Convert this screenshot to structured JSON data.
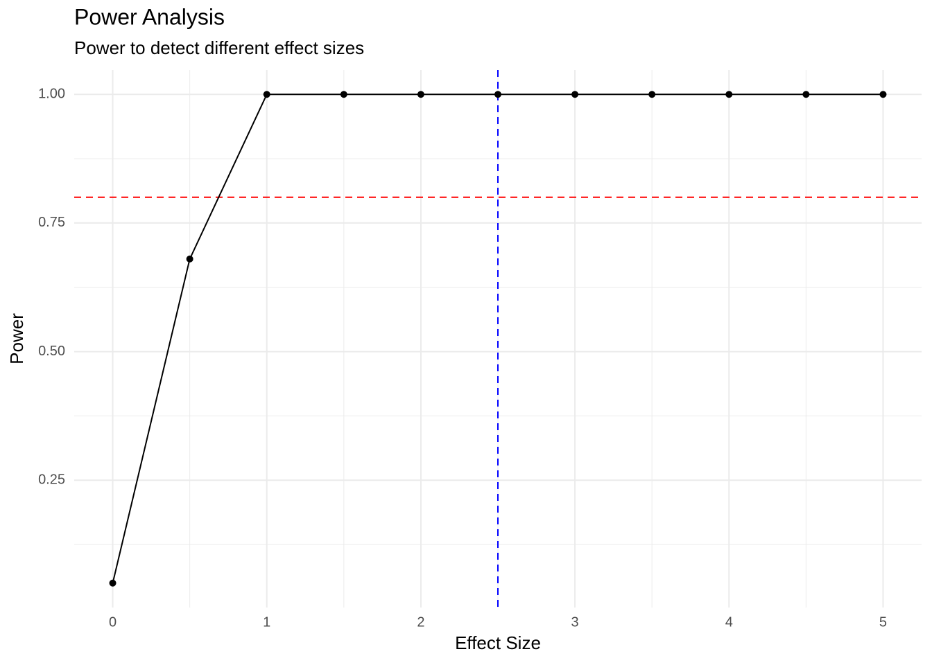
{
  "chart_data": {
    "type": "line",
    "title": "Power Analysis",
    "subtitle": "Power to detect different effect sizes",
    "x_label": "Effect Size",
    "y_label": "Power",
    "x": [
      0,
      0.5,
      1,
      1.5,
      2,
      2.5,
      3,
      3.5,
      4,
      4.5,
      5
    ],
    "series": [
      {
        "color": "#000000",
        "values": [
          0.05,
          0.68,
          1,
          1,
          1,
          1,
          1,
          1,
          1,
          1,
          1
        ]
      }
    ],
    "xlim": [
      -0.25,
      5.25
    ],
    "ylim": [
      0.0025,
      1.0475
    ],
    "xticks": [
      0,
      1,
      2,
      3,
      4,
      5
    ],
    "yticks": [
      {
        "value": 0.25,
        "label": "0.25"
      },
      {
        "value": 0.5,
        "label": "0.50"
      },
      {
        "value": 0.75,
        "label": "0.75"
      },
      {
        "value": 1,
        "label": "1.00"
      }
    ],
    "hlines": [
      {
        "value": 0.8,
        "color": "#ff0000"
      }
    ],
    "vlines": [
      {
        "value": 2.5,
        "color": "#0000ff"
      }
    ],
    "grid": true,
    "minor_grid": true
  }
}
